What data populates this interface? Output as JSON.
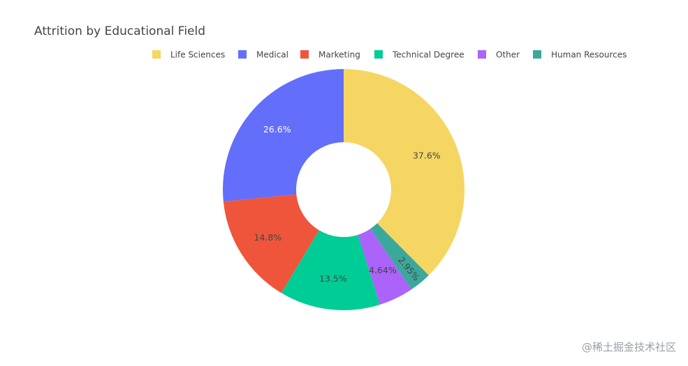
{
  "chart_data": {
    "type": "pie",
    "hole": true,
    "title": "Attrition by Educational Field",
    "legend_position": "top",
    "slices": [
      {
        "label": "Life Sciences",
        "value": 37.6,
        "display": "37.6%",
        "color": "#f5d662",
        "text_color": "#444444"
      },
      {
        "label": "Human Resources",
        "value": 2.95,
        "display": "2.95%",
        "color": "#3ba89c",
        "text_color": "#444444"
      },
      {
        "label": "Other",
        "value": 4.64,
        "display": "4.64%",
        "color": "#ab63fa",
        "text_color": "#444444"
      },
      {
        "label": "Technical Degree",
        "value": 13.5,
        "display": "13.5%",
        "color": "#00cc96",
        "text_color": "#444444"
      },
      {
        "label": "Marketing",
        "value": 14.8,
        "display": "14.8%",
        "color": "#ef553b",
        "text_color": "#444444"
      },
      {
        "label": "Medical",
        "value": 26.6,
        "display": "26.6%",
        "color": "#636efa",
        "text_color": "#ffffff"
      }
    ],
    "legend_order": [
      "Life Sciences",
      "Medical",
      "Marketing",
      "Technical Degree",
      "Other",
      "Human Resources"
    ]
  },
  "watermark": "@稀土掘金技术社区"
}
